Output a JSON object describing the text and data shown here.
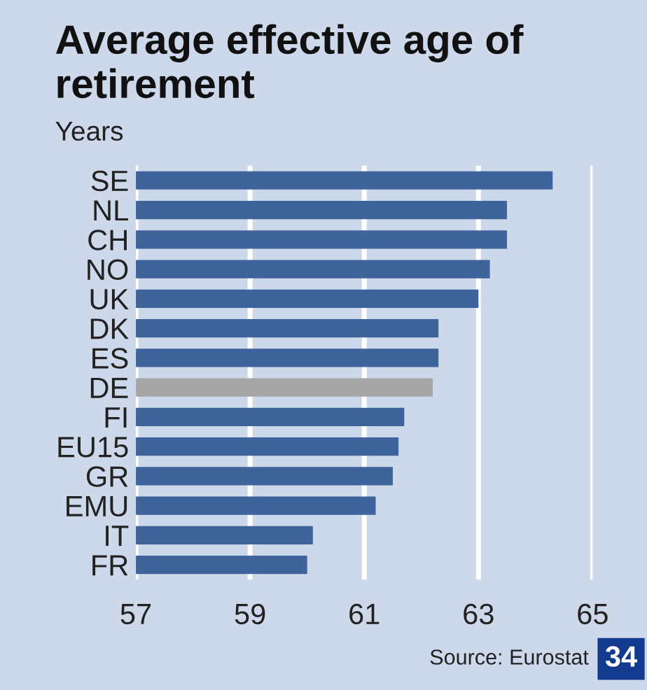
{
  "chart_data": {
    "type": "bar",
    "orientation": "horizontal",
    "title": "Average effective age of retirement",
    "subtitle": "Years",
    "categories": [
      "SE",
      "NL",
      "CH",
      "NO",
      "UK",
      "DK",
      "ES",
      "DE",
      "FI",
      "EU15",
      "GR",
      "EMU",
      "IT",
      "FR"
    ],
    "values": [
      64.3,
      63.5,
      63.5,
      63.2,
      63.0,
      62.3,
      62.3,
      62.2,
      61.7,
      61.6,
      61.5,
      61.2,
      60.1,
      60.0
    ],
    "colors": [
      "#3060aa",
      "#3060aa",
      "#3060aa",
      "#3060aa",
      "#3060aa",
      "#3060aa",
      "#3060aa",
      "#a6a6a6",
      "#3060aa",
      "#3060aa",
      "#3060aa",
      "#3060aa",
      "#3060aa",
      "#3060aa"
    ],
    "xlim": [
      57,
      65
    ],
    "xticks": [
      57,
      59,
      61,
      63,
      65
    ],
    "grid": "x",
    "legend": false,
    "annotations": [
      "Source: Eurostat",
      "34"
    ]
  }
}
